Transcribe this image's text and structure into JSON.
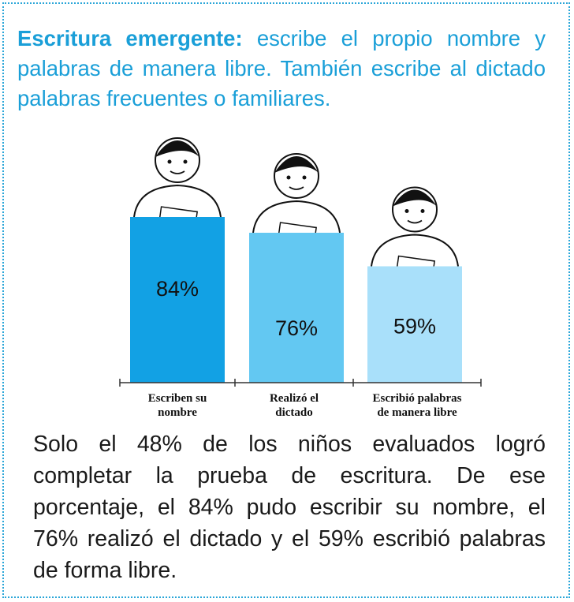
{
  "intro": {
    "heading": "Escritura emergente:",
    "text": "escribe el propio nombre y palabras de manera libre. También escribe al dictado palabras frecuentes o familiares."
  },
  "chart_data": {
    "type": "bar",
    "categories": [
      [
        "Escriben su",
        "nombre"
      ],
      [
        "Realizó el",
        "dictado"
      ],
      [
        "Escribió palabras",
        "de manera libre"
      ]
    ],
    "values": [
      84,
      76,
      59
    ],
    "value_labels": [
      "84%",
      "76%",
      "59%"
    ],
    "ylim": [
      0,
      100
    ],
    "colors": [
      "#12a1e4",
      "#63c8f2",
      "#a9e0fa"
    ],
    "grid": false
  },
  "summary": {
    "text": "Solo el 48% de los niños evaluados logró completar la prueba de escritura. De ese porcentaje, el 84% pudo escribir su nombre, el 76% realizó el dictado y el 59% escribió palabras de forma libre."
  },
  "colors": {
    "accent": "#1a9fd8",
    "border": "#2aa6d8"
  }
}
